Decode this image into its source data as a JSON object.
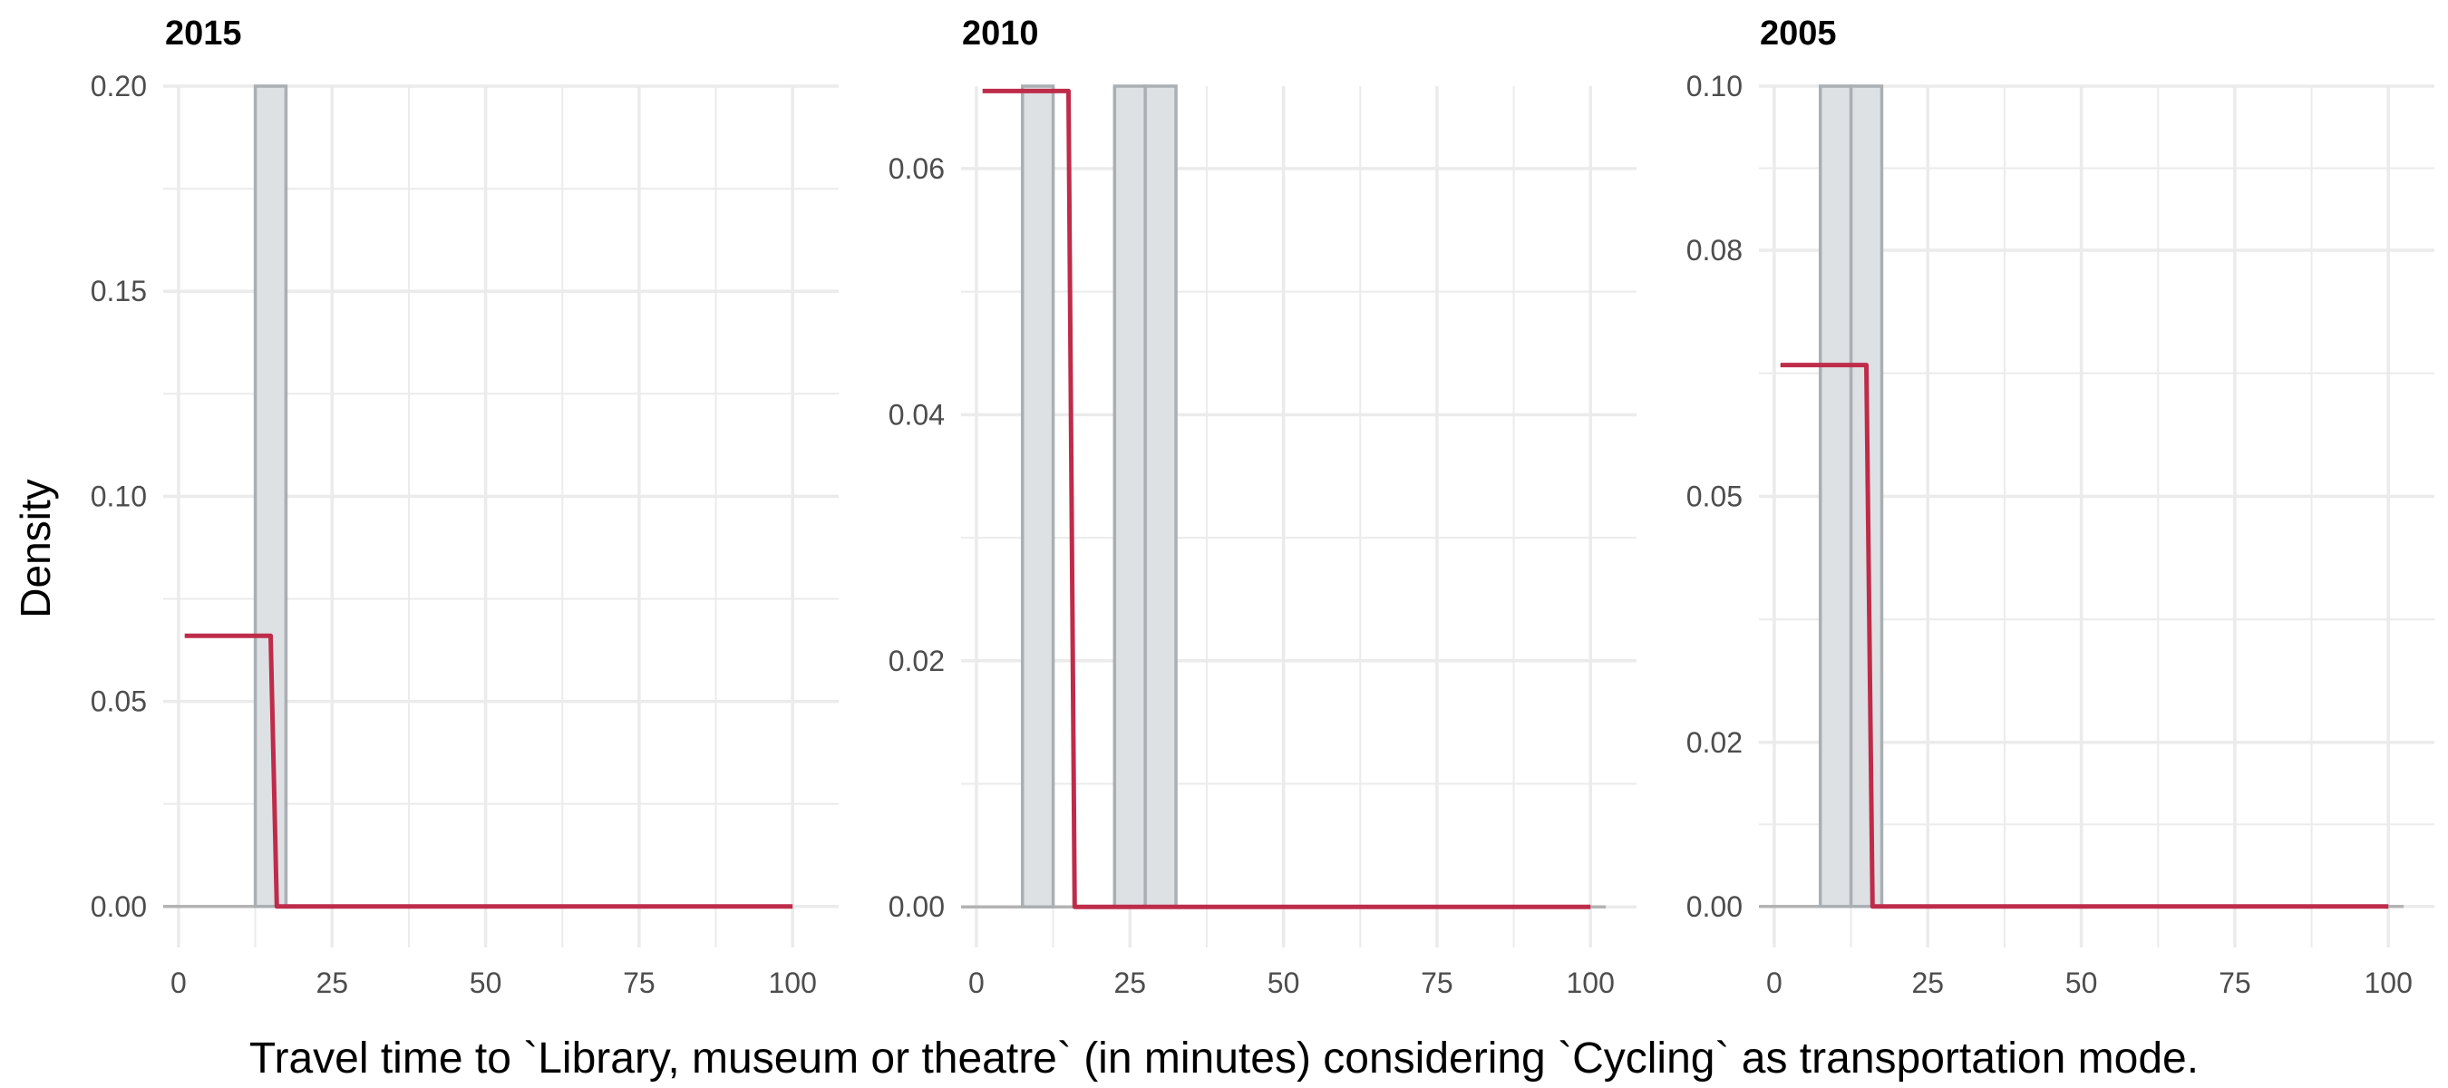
{
  "figure": {
    "ylabel": "Density",
    "xlabel": "Travel time to `Library, museum or theatre` (in minutes) considering `Cycling` as transportation mode."
  },
  "colors": {
    "bar_fill": "#dde1e4",
    "bar_stroke": "#a9afb3",
    "line": "#be2c4a",
    "baseline": "#b3b3b3",
    "grid": "#ebebeb",
    "tick_text": "#4d4d4d"
  },
  "chart_data": [
    {
      "type": "bar",
      "facet": "2015",
      "xlim": [
        -2.5,
        107.5
      ],
      "ylim": [
        -0.01,
        0.2
      ],
      "x_ticks": [
        0,
        25,
        50,
        75,
        100
      ],
      "x_tick_labels": [
        "0",
        "25",
        "50",
        "75",
        "100"
      ],
      "y_ticks": [
        0,
        0.05,
        0.1,
        0.15,
        0.2
      ],
      "y_tick_labels": [
        "0.00",
        "0.05",
        "0.10",
        "0.15",
        "0.20"
      ],
      "histogram": [
        {
          "x0": 12.5,
          "x1": 17.5,
          "density": 0.2
        }
      ],
      "density_line": [
        [
          1,
          0.066
        ],
        [
          15,
          0.066
        ],
        [
          16,
          0
        ],
        [
          100,
          0
        ]
      ],
      "baseline_range": [
        -2.5,
        100
      ]
    },
    {
      "type": "bar",
      "facet": "2010",
      "xlim": [
        -2.5,
        107.5
      ],
      "ylim": [
        -0.0033,
        0.0667
      ],
      "x_ticks": [
        0,
        25,
        50,
        75,
        100
      ],
      "x_tick_labels": [
        "0",
        "25",
        "50",
        "75",
        "100"
      ],
      "y_ticks": [
        0,
        0.02,
        0.04,
        0.06
      ],
      "y_tick_labels": [
        "0.00",
        "0.02",
        "0.04",
        "0.06"
      ],
      "histogram": [
        {
          "x0": 7.5,
          "x1": 12.5,
          "density": 0.0667
        },
        {
          "x0": 22.5,
          "x1": 27.5,
          "density": 0.0667
        },
        {
          "x0": 27.5,
          "x1": 32.5,
          "density": 0.0667
        }
      ],
      "density_line": [
        [
          1,
          0.0663
        ],
        [
          15,
          0.0663
        ],
        [
          16,
          0
        ],
        [
          100,
          0
        ]
      ],
      "baseline_range": [
        -2.5,
        102.5
      ]
    },
    {
      "type": "bar",
      "facet": "2005",
      "xlim": [
        -2.5,
        107.5
      ],
      "ylim": [
        -0.005,
        0.1
      ],
      "x_ticks": [
        0,
        25,
        50,
        75,
        100
      ],
      "x_tick_labels": [
        "0",
        "25",
        "50",
        "75",
        "100"
      ],
      "y_ticks": [
        0,
        0.02,
        0.05,
        0.08,
        0.1
      ],
      "y_tick_labels": [
        "0.00",
        "0.02",
        "0.05",
        "0.08",
        "0.10"
      ],
      "histogram": [
        {
          "x0": 7.5,
          "x1": 12.5,
          "density": 0.1
        },
        {
          "x0": 12.5,
          "x1": 17.5,
          "density": 0.1
        }
      ],
      "density_line": [
        [
          1,
          0.066
        ],
        [
          15,
          0.066
        ],
        [
          16,
          0
        ],
        [
          100,
          0
        ]
      ],
      "baseline_range": [
        -2.5,
        102.5
      ]
    }
  ]
}
